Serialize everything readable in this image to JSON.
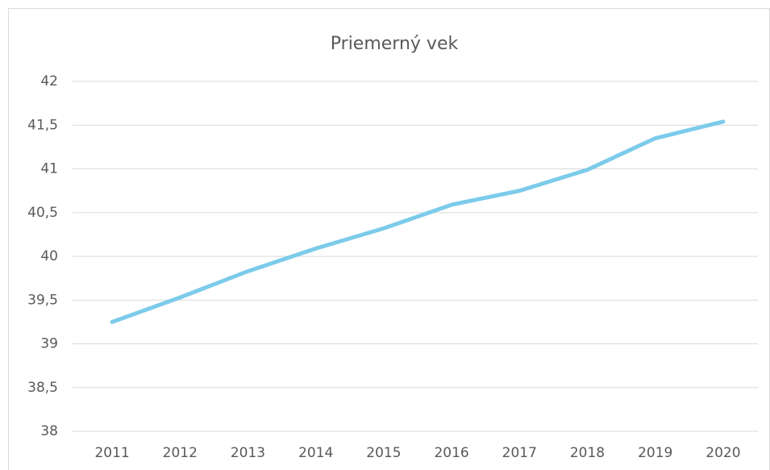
{
  "chart_data": {
    "type": "line",
    "title": "Priemerný vek",
    "categories": [
      "2011",
      "2012",
      "2013",
      "2014",
      "2015",
      "2016",
      "2017",
      "2018",
      "2019",
      "2020"
    ],
    "series": [
      {
        "name": "Priemerný vek",
        "color": "#7ccbea",
        "values": [
          39.25,
          39.53,
          39.83,
          40.09,
          40.32,
          40.59,
          40.75,
          40.99,
          41.35,
          41.54
        ]
      }
    ],
    "ylim": [
      38,
      42
    ],
    "yticks": [
      38,
      {
        "value": 38.5,
        "label": "38,5"
      },
      39,
      {
        "value": 39.5,
        "label": "39,5"
      },
      40,
      {
        "value": 40.5,
        "label": "40,5"
      },
      41,
      {
        "value": 41.5,
        "label": "41,5"
      },
      42
    ],
    "grid": true
  }
}
